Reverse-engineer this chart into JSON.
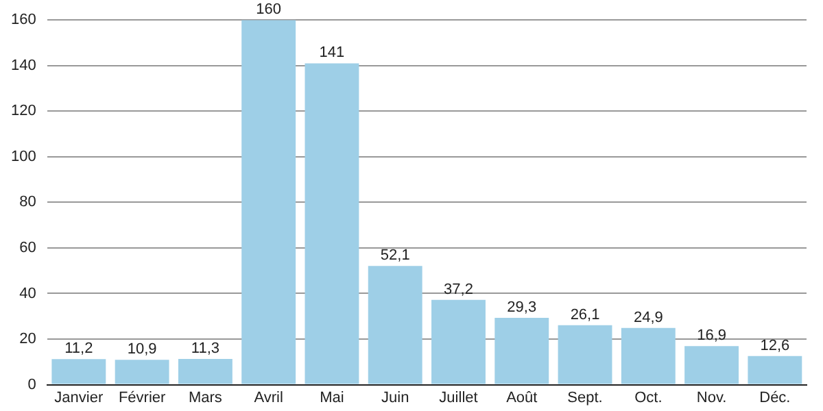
{
  "chart_data": {
    "type": "bar",
    "categories": [
      "Janvier",
      "Février",
      "Mars",
      "Avril",
      "Mai",
      "Juin",
      "Juillet",
      "Août",
      "Sept.",
      "Oct.",
      "Nov.",
      "Déc."
    ],
    "values": [
      11.2,
      10.9,
      11.3,
      160,
      141,
      52.1,
      37.2,
      29.3,
      26.1,
      24.9,
      16.9,
      12.6
    ],
    "value_labels": [
      "11,2",
      "10,9",
      "11,3",
      "160",
      "141",
      "52,1",
      "37,2",
      "29,3",
      "26,1",
      "24,9",
      "16,9",
      "12,6"
    ],
    "color": "#9ecfe7",
    "ylim": [
      0,
      160
    ],
    "yticks": [
      0,
      20,
      40,
      60,
      80,
      100,
      120,
      140,
      160
    ],
    "grid": "y",
    "legend": false
  }
}
